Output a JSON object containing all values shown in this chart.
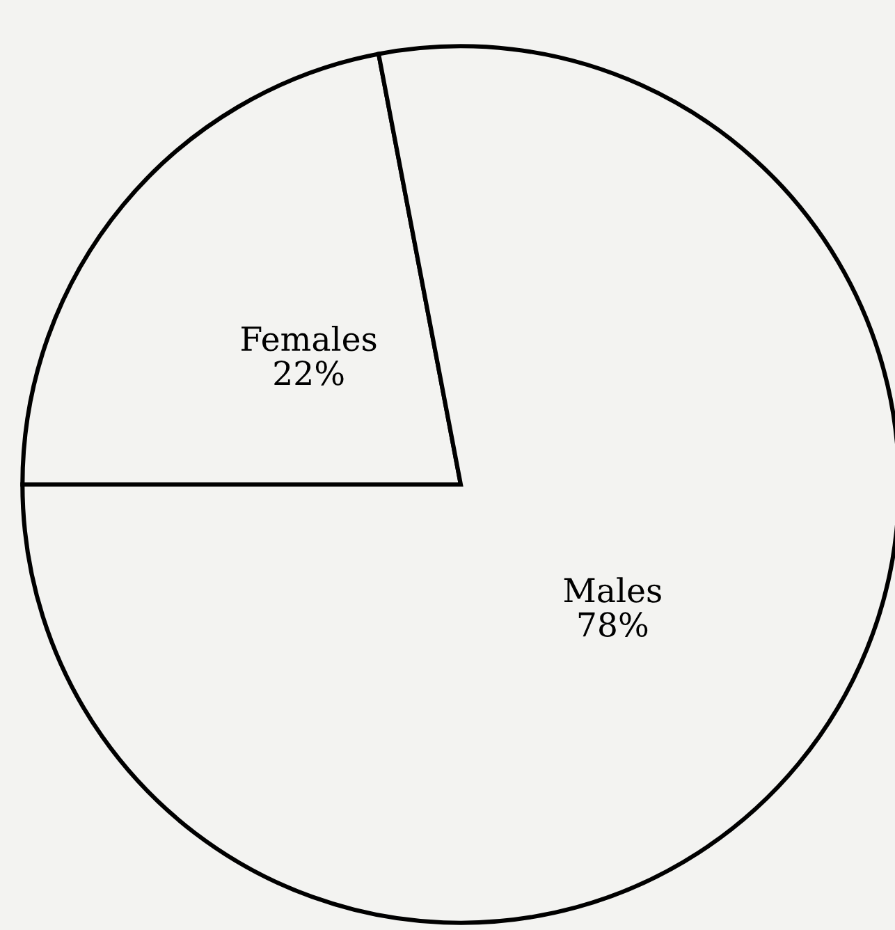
{
  "chart_data": {
    "type": "pie",
    "categories": [
      "Females",
      "Males"
    ],
    "values": [
      22,
      78
    ],
    "value_labels": [
      "22%",
      "78%"
    ],
    "colors": [
      "#f3f3f1",
      "#f3f3f1"
    ]
  }
}
